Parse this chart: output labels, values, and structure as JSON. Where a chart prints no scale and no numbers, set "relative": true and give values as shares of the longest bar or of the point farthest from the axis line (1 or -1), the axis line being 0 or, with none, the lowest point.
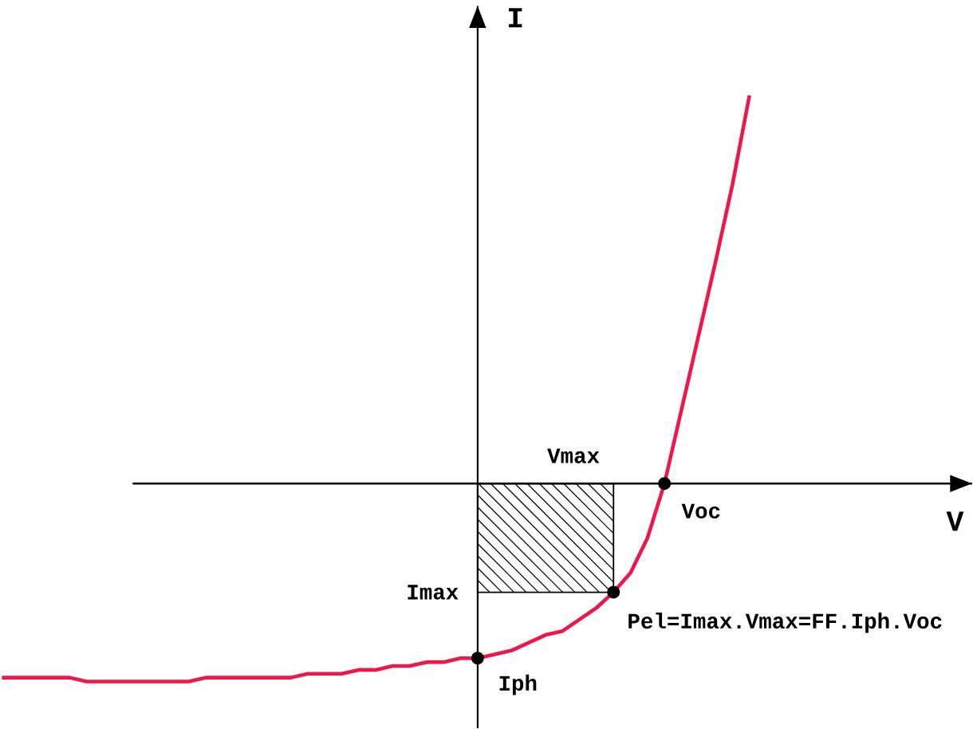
{
  "chart_data": {
    "type": "line",
    "relative": true,
    "ylabel": "I",
    "categories": [
      null,
      null,
      null,
      null,
      null,
      null,
      null,
      null,
      null,
      null,
      null,
      null,
      null,
      null,
      null,
      null,
      null,
      null,
      null,
      null,
      null,
      null,
      null,
      null,
      null,
      null,
      null,
      null,
      null,
      null,
      null,
      null,
      null,
      null,
      null,
      null,
      null,
      null,
      null,
      null,
      null,
      null,
      null,
      null,
      null
    ],
    "series": [
      {
        "color": "#f0154a",
        "values": [
          -0.5,
          -0.5,
          -0.5,
          -0.5,
          -0.5,
          -0.51,
          -0.51,
          -0.51,
          -0.51,
          -0.51,
          -0.51,
          -0.51,
          -0.5,
          -0.5,
          -0.5,
          -0.5,
          -0.5,
          -0.5,
          -0.49,
          -0.49,
          -0.49,
          -0.48,
          -0.48,
          -0.47,
          -0.47,
          -0.46,
          -0.46,
          -0.45,
          -0.45,
          -0.44,
          -0.43,
          -0.41,
          -0.39,
          -0.38,
          -0.35,
          -0.32,
          -0.28,
          -0.23,
          -0.14,
          0,
          0.19,
          0.38,
          0.57,
          0.77,
          1
        ]
      }
    ],
    "annotations": [
      "Vmax",
      "Voc",
      "Imax",
      "Iph",
      "Pel=Imax.Vmax=FF.Iph.Voc",
      "V"
    ]
  }
}
